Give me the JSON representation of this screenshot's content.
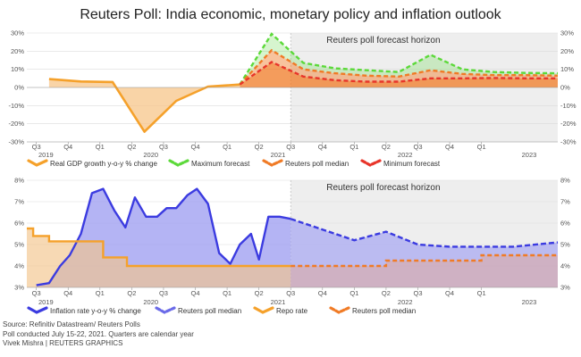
{
  "title": "Reuters Poll: India economic, monetary policy and inflation outlook",
  "footer": {
    "source": "Source: Refinitiv Datastream/ Reuters Polls",
    "poll_note": "Poll conducted July 15-22, 2021. Quarters are calendar year",
    "credit": "Vivek Mishra | REUTERS GRAPHICS"
  },
  "colors": {
    "gdp": "#f5a12b",
    "max_forecast": "#5cd93a",
    "median_forecast": "#f07b26",
    "min_forecast": "#e8352a",
    "inflation": "#3b3be0",
    "inflation_fill": "#9b9bf0",
    "repo": "#f5a12b",
    "repo_fill": "#f2c48c",
    "forecast_shade": "#eeeeee"
  },
  "chart_data": [
    {
      "type": "area",
      "name": "gdp-growth-chart",
      "annotation": "Reuters poll forecast horizon",
      "forecast_start_x": 8,
      "x_range": [
        -0.3,
        16.4
      ],
      "ylim": [
        -30,
        30
      ],
      "yticks": [
        -30,
        -20,
        -10,
        0,
        10,
        20,
        30
      ],
      "ytick_labels": [
        "-30%",
        "-20%",
        "-10%",
        "0%",
        "10%",
        "20%",
        "30%"
      ],
      "quarter_labels": [
        "Q3",
        "Q4",
        "Q1",
        "Q2",
        "Q3",
        "Q4",
        "Q1",
        "Q2",
        "Q3",
        "Q4",
        "Q1",
        "Q2",
        "Q3",
        "Q4",
        "Q1"
      ],
      "quarter_x": [
        0,
        1,
        2,
        3,
        4,
        5,
        6,
        7,
        8,
        9,
        10,
        11,
        12,
        13,
        14
      ],
      "year_labels": [
        {
          "text": "2019",
          "x": 0.3
        },
        {
          "text": "2020",
          "x": 3.6
        },
        {
          "text": "2021",
          "x": 7.6
        },
        {
          "text": "2022",
          "x": 11.6
        },
        {
          "text": "2023",
          "x": 15.5
        }
      ],
      "series": [
        {
          "name": "Real GDP growth y-o-y % change",
          "style": "area",
          "x": [
            0.4,
            1.4,
            2.4,
            3.4,
            4.4,
            5.4,
            6.4
          ],
          "y": [
            4.6,
            3.3,
            3.0,
            -24.4,
            -7.4,
            0.5,
            1.6
          ]
        },
        {
          "name": "Maximum forecast",
          "style": "dashed",
          "x": [
            6.4,
            7.4,
            8.4,
            9.4,
            10.4,
            11.4,
            12.4,
            13.4,
            14.4,
            15.4,
            16.4
          ],
          "y": [
            1.6,
            29.5,
            13.5,
            10.5,
            9.5,
            8.5,
            18.0,
            10.0,
            8.5,
            8.0,
            7.8
          ]
        },
        {
          "name": "Reuters poll median",
          "style": "dashed",
          "x": [
            6.4,
            7.4,
            8.4,
            9.4,
            10.4,
            11.4,
            12.4,
            13.4,
            14.4,
            15.4,
            16.4
          ],
          "y": [
            1.6,
            20.5,
            10.0,
            7.8,
            6.5,
            6.0,
            9.5,
            7.5,
            6.8,
            6.8,
            6.5
          ]
        },
        {
          "name": "Minimum forecast",
          "style": "dashed",
          "x": [
            6.4,
            7.4,
            8.4,
            9.4,
            10.4,
            11.4,
            12.4,
            13.4,
            14.4,
            15.4,
            16.4
          ],
          "y": [
            1.6,
            14.0,
            6.0,
            4.0,
            3.2,
            3.2,
            5.0,
            5.0,
            5.2,
            5.0,
            5.0
          ]
        }
      ]
    },
    {
      "type": "area",
      "name": "inflation-repo-chart",
      "annotation": "Reuters poll forecast horizon",
      "forecast_start_x": 8,
      "x_range": [
        -0.3,
        16.4
      ],
      "ylim": [
        3,
        8
      ],
      "yticks": [
        3,
        4,
        5,
        6,
        7,
        8
      ],
      "ytick_labels": [
        "3%",
        "4%",
        "5%",
        "6%",
        "7%",
        "8%"
      ],
      "quarter_labels": [
        "Q3",
        "Q4",
        "Q1",
        "Q2",
        "Q3",
        "Q4",
        "Q1",
        "Q2",
        "Q3",
        "Q4",
        "Q1",
        "Q2",
        "Q3",
        "Q4",
        "Q1"
      ],
      "quarter_x": [
        0,
        1,
        2,
        3,
        4,
        5,
        6,
        7,
        8,
        9,
        10,
        11,
        12,
        13,
        14
      ],
      "year_labels": [
        {
          "text": "2019",
          "x": 0.3
        },
        {
          "text": "2020",
          "x": 3.6
        },
        {
          "text": "2021",
          "x": 7.6
        },
        {
          "text": "2022",
          "x": 11.6
        },
        {
          "text": "2023",
          "x": 15.5
        }
      ],
      "series": [
        {
          "name": "Inflation rate y-o-y % change",
          "style": "area",
          "x": [
            0.0,
            0.4,
            0.75,
            1.05,
            1.4,
            1.75,
            2.1,
            2.45,
            2.8,
            3.1,
            3.45,
            3.8,
            4.1,
            4.4,
            4.75,
            5.05,
            5.4,
            5.75,
            6.1,
            6.4,
            6.75,
            7.0,
            7.3,
            7.65,
            8.0
          ],
          "y": [
            3.1,
            3.2,
            4.0,
            4.5,
            5.5,
            7.4,
            7.6,
            6.6,
            5.8,
            7.2,
            6.3,
            6.3,
            6.7,
            6.7,
            7.3,
            7.6,
            6.9,
            4.6,
            4.1,
            5.0,
            5.5,
            4.3,
            6.3,
            6.3,
            6.2
          ]
        },
        {
          "name": "Reuters poll median",
          "style": "dashed",
          "x": [
            8.0,
            9.0,
            10.0,
            11.0,
            12.0,
            13.0,
            14.0,
            15.0,
            16.4
          ],
          "y": [
            6.2,
            5.7,
            5.2,
            5.6,
            5.0,
            4.9,
            4.9,
            4.9,
            5.1
          ]
        },
        {
          "name": "Repo rate",
          "style": "step-area",
          "x": [
            -0.3,
            -0.1,
            -0.1,
            0.4,
            0.4,
            2.1,
            2.1,
            2.85,
            2.85,
            8.0
          ],
          "y": [
            5.75,
            5.75,
            5.4,
            5.4,
            5.15,
            5.15,
            4.4,
            4.4,
            4.0,
            4.0
          ]
        },
        {
          "name": "Reuters poll median",
          "style": "dashed-step",
          "x": [
            8.0,
            11.0,
            11.0,
            14.0,
            14.0,
            16.4
          ],
          "y": [
            4.0,
            4.0,
            4.25,
            4.25,
            4.5,
            4.5
          ]
        }
      ]
    }
  ],
  "legends": [
    {
      "label": "Real GDP growth y-o-y % change",
      "color": "#f5a12b"
    },
    {
      "label": "Maximum forecast",
      "color": "#5cd93a"
    },
    {
      "label": "Reuters poll median",
      "color": "#f07b26"
    },
    {
      "label": "Minimum forecast",
      "color": "#e8352a"
    },
    {
      "label": "Inflation rate y-o-y % change",
      "color": "#3b3be0"
    },
    {
      "label": "Reuters poll median",
      "color": "#6a6ae8"
    },
    {
      "label": "Repo rate",
      "color": "#f5a12b"
    },
    {
      "label": "Reuters poll median",
      "color": "#f07b26"
    }
  ]
}
